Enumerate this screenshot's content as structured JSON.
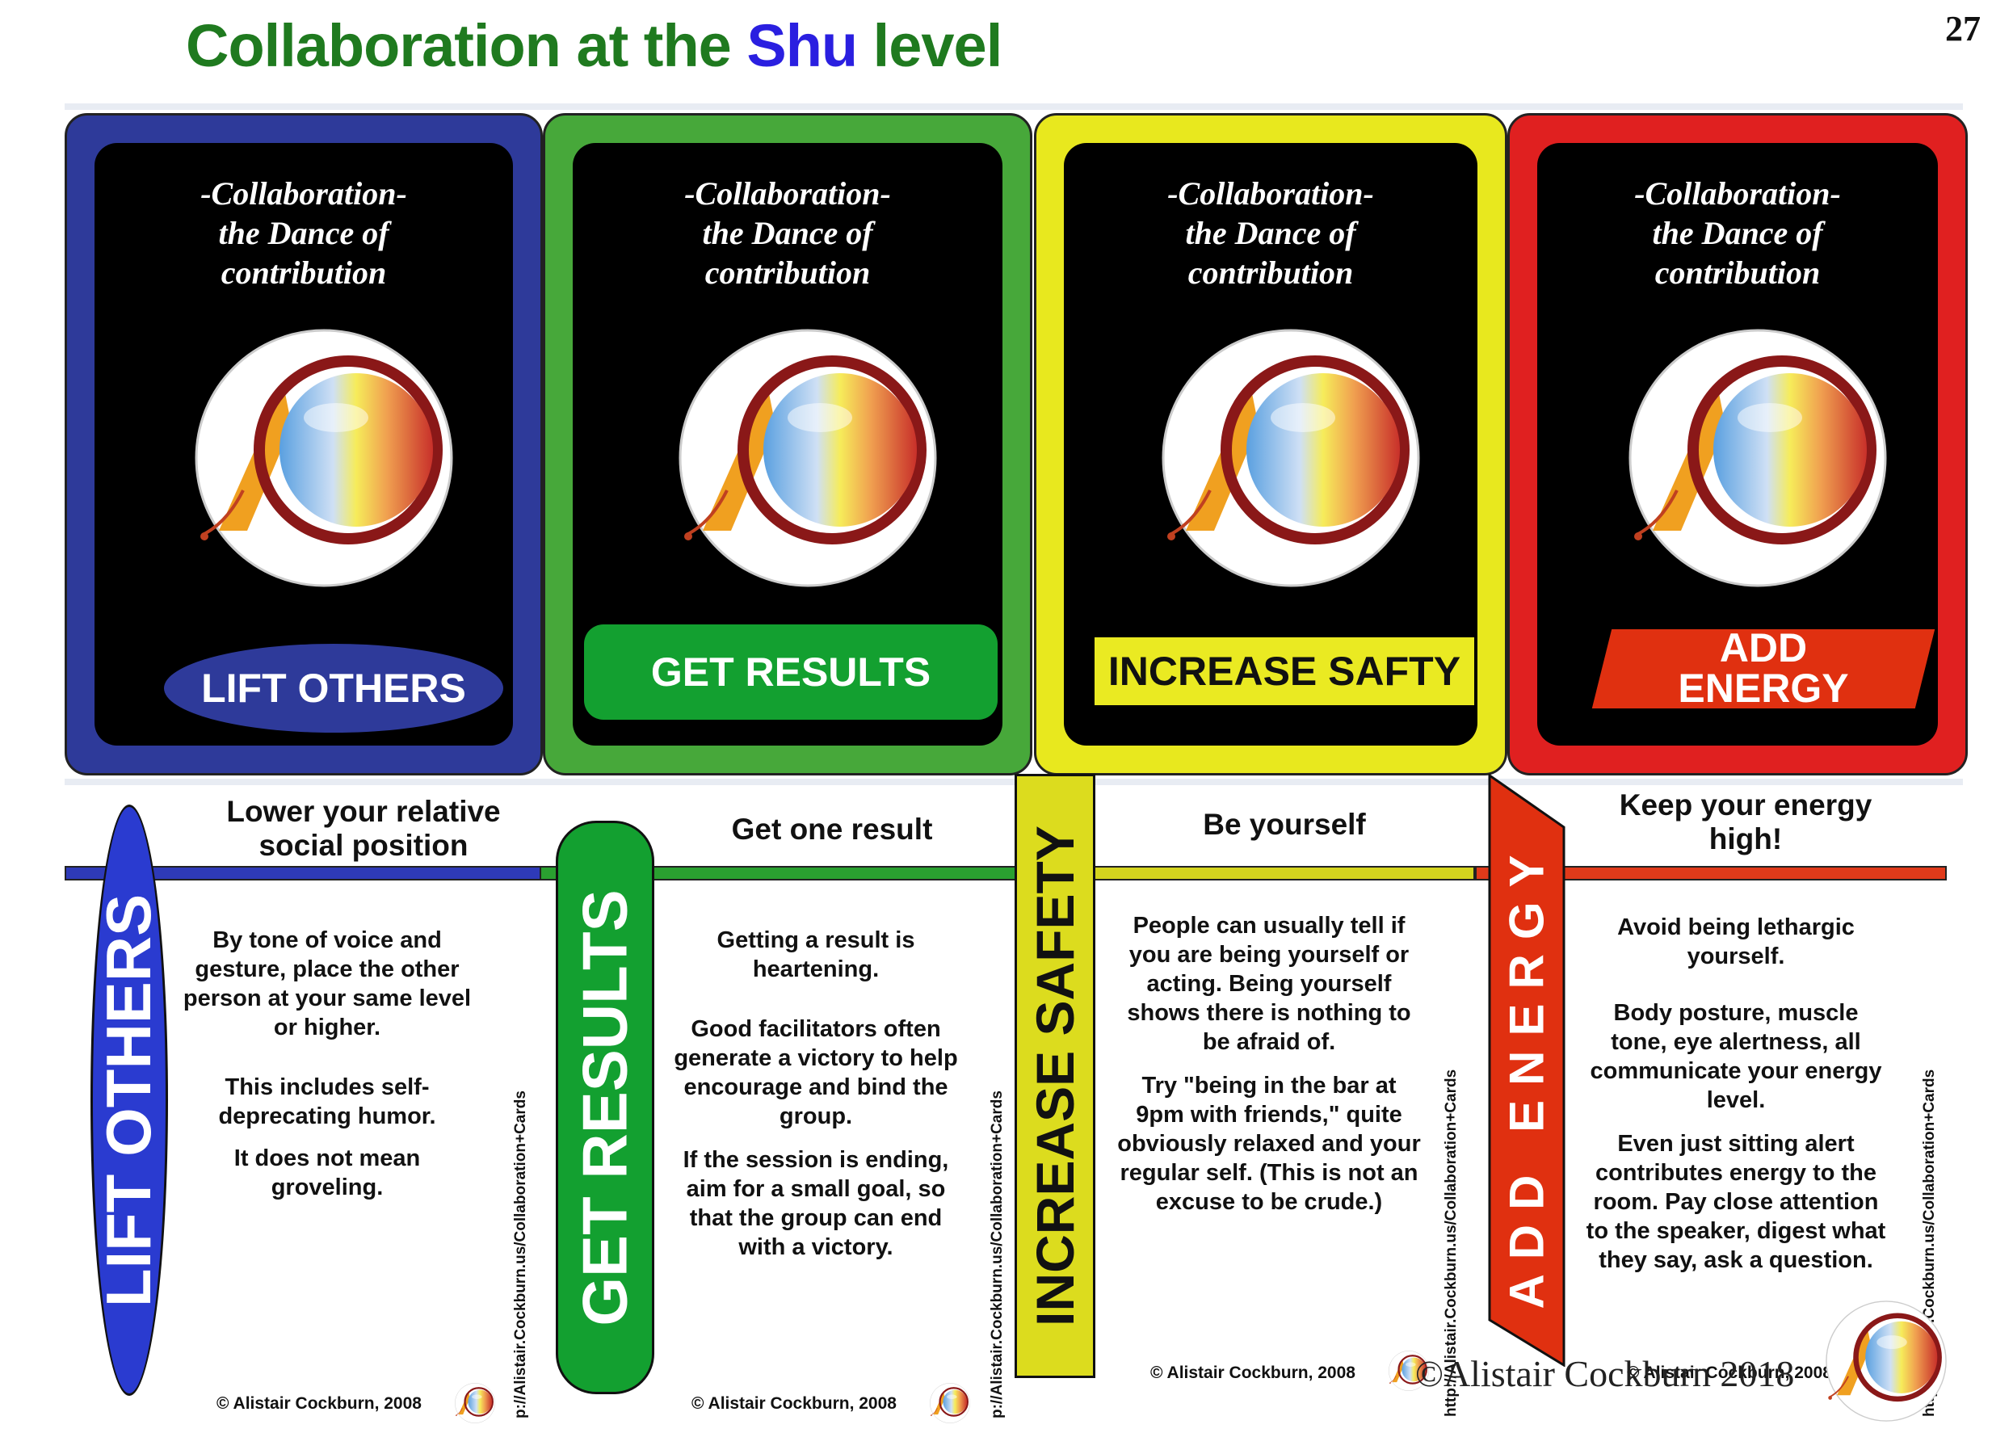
{
  "title": {
    "prefix": "Collaboration at the ",
    "highlight": "Shu",
    "suffix": " level"
  },
  "page_number": "27",
  "card_text": "-Collaboration-\nthe Dance of\ncontribution",
  "cards": [
    {
      "label": "LIFT OTHERS",
      "color": "#2e3a9a"
    },
    {
      "label": "GET RESULTS",
      "color": "#47a83a"
    },
    {
      "label": "INCREASE SAFTY",
      "color": "#e8e81e"
    },
    {
      "label": "ADD\nENERGY",
      "color": "#e02020"
    }
  ],
  "sections": [
    {
      "tab": "LIFT OTHERS",
      "headline": "Lower your relative\nsocial position",
      "body1": "By tone of voice and\ngesture, place the other\nperson at your same level\nor higher.",
      "body2": "This includes self-\ndeprecating humor.",
      "body3": "It does not mean\ngroveling.",
      "url": "p://Alistair.Cockburn.us/Collaboration+Cards",
      "copyright": "© Alistair Cockburn, 2008"
    },
    {
      "tab": "GET RESULTS",
      "headline": "Get one result",
      "body1": "Getting a result is\nheartening.",
      "body2": "Good facilitators often\ngenerate a victory to help\nencourage and bind the\ngroup.",
      "body3": "If the session is ending,\naim for a small goal, so\nthat the group can end\nwith a victory.",
      "url": "p://Alistair.Cockburn.us/Collaboration+Cards",
      "copyright": "© Alistair Cockburn, 2008"
    },
    {
      "tab": "INCREASE  SAFETY",
      "headline": "Be yourself",
      "body1": "People can usually tell if\nyou are being yourself or\nacting. Being yourself\nshows there is nothing to\nbe afraid of.",
      "body2": "Try \"being in the bar at\n9pm with friends,\" quite\nobviously relaxed and your\nregular self. (This is not an\nexcuse to be crude.)",
      "url": "http://Alistair.Cockburn.us/Collaboration+Cards",
      "copyright": "© Alistair Cockburn, 2008"
    },
    {
      "tab": "ADD ENERGY",
      "headline": "Keep your energy\nhigh!",
      "body1": "Avoid being lethargic\nyourself.",
      "body2": "Body posture, muscle\ntone, eye alertness, all\ncommunicate your energy\nlevel.",
      "body3": "Even just sitting alert\ncontributes energy to the\nroom. Pay close attention\nto the speaker, digest what\nthey say, ask a question.",
      "url": "http://Alistair.Cockburn.us/Collaboration+Cards",
      "copyright": "© Alistair Cockburn, 2008"
    }
  ],
  "signature": "©Alistair Cockburn 2018"
}
